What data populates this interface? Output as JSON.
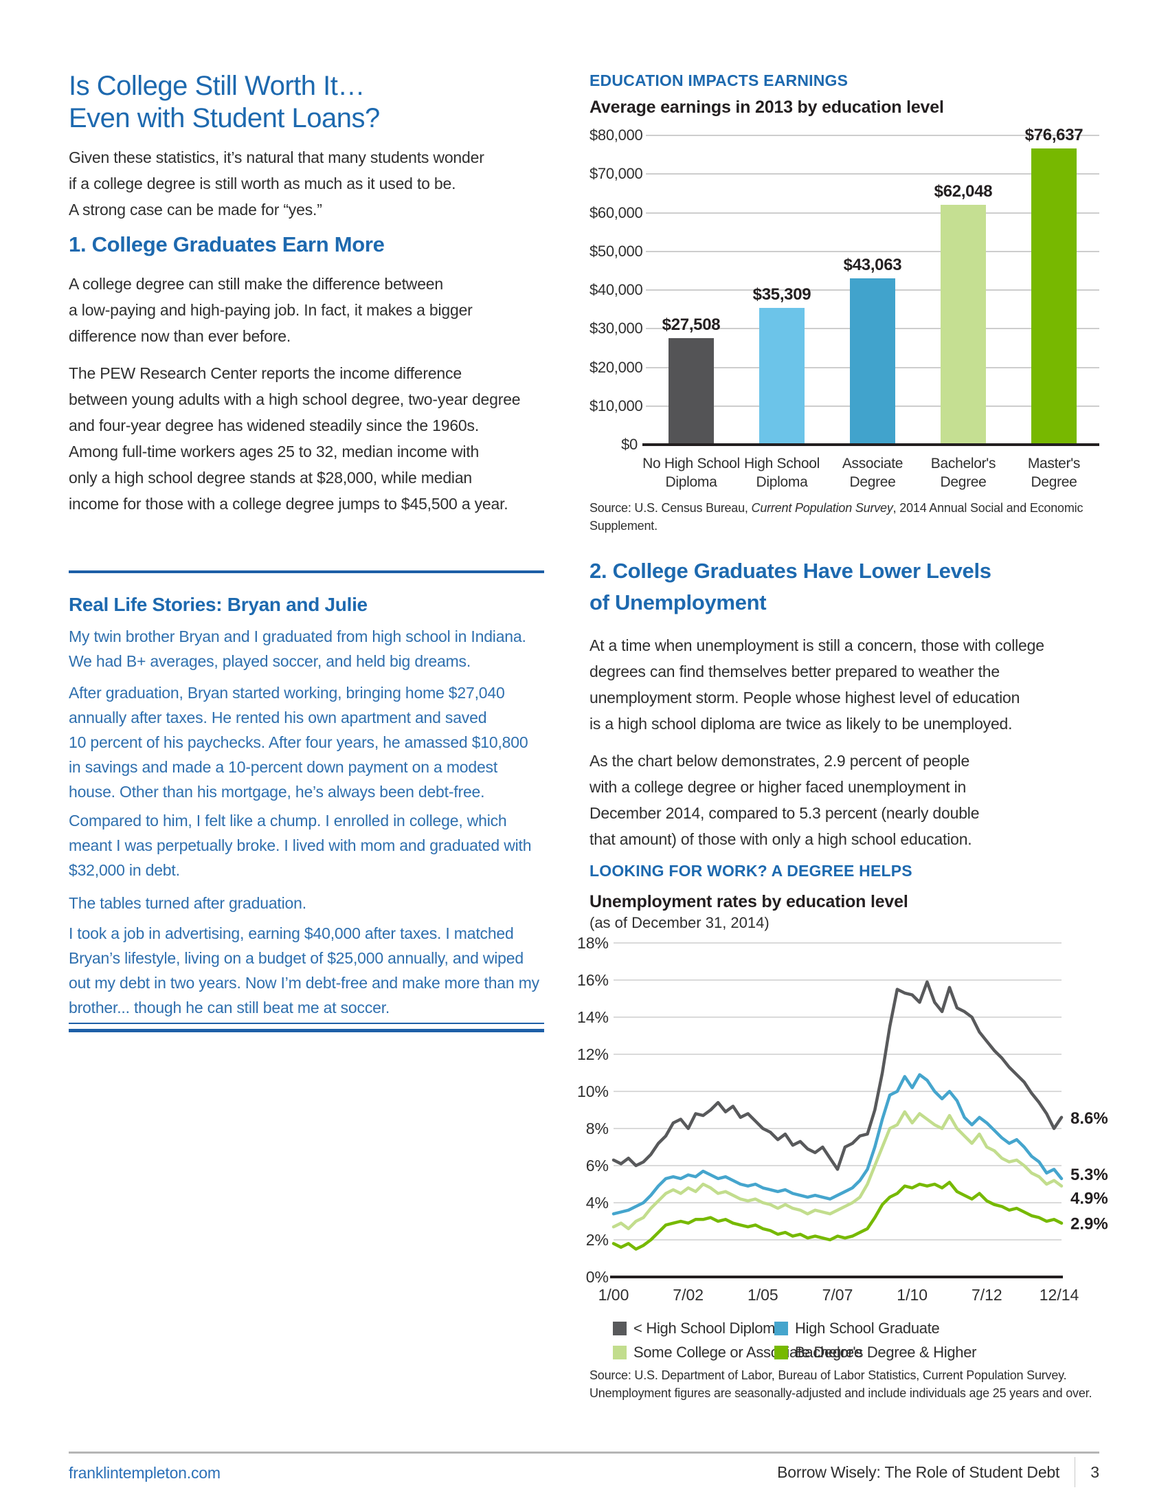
{
  "left": {
    "title_line1": "Is College Still Worth It…",
    "title_line2": "Even with Student Loans?",
    "intro": "Given these statistics, it’s natural that many students wonder\nif a college degree is still worth as much as it used to be.\nA strong case can be made for “yes.”",
    "section1": {
      "heading": "1. College Graduates Earn More",
      "p1": "A college degree can still make the difference between\na low-paying and high-paying job. In fact, it makes a bigger\ndifference now than ever before.",
      "p2": "The PEW Research Center reports the income difference\nbetween young adults with a high school degree, two-year degree\nand four-year degree has widened steadily since the 1960s.\nAmong full-time workers ages 25 to 32, median income with\nonly a high school degree stands at $28,000, while median\nincome for those with a college degree jumps to $45,500 a year."
    },
    "story": {
      "heading": "Real Life Stories: Bryan and Julie",
      "p1": "My twin brother Bryan and I graduated from high school in Indiana.\nWe had B+ averages, played soccer, and held big dreams.",
      "p2": "After graduation, Bryan started working, bringing home $27,040\nannually after taxes. He rented his own apartment and saved\n10 percent of his paychecks. After four years, he amassed $10,800\nin savings and made a 10-percent down payment on a modest\nhouse. Other than his mortgage, he’s always been debt-free.",
      "p3": "Compared to him, I felt like a chump. I enrolled in college, which\nmeant I was perpetually broke. I lived with mom and graduated with\n$32,000 in debt.",
      "p4": "The tables turned after graduation.",
      "p5": "I took a job in advertising, earning $40,000 after taxes. I matched\nBryan’s lifestyle, living on a budget of $25,000 annually, and wiped\nout my debt in two years. Now I’m debt-free and make more than my\nbrother... though he can still beat me at soccer."
    }
  },
  "right": {
    "kicker1": "EDUCATION IMPACTS EARNINGS",
    "source1": {
      "prefix": "Source: U.S. Census Bureau, ",
      "italic": "Current Population Survey",
      "suffix": ", 2014 Annual Social and Economic Supplement."
    },
    "section2": {
      "heading": "2. College Graduates Have Lower Levels\nof Unemployment",
      "p1": "At a time when unemployment is still a concern, those with college\ndegrees can find themselves better prepared to weather the\nunemployment storm. People whose highest level of education\nis a high school diploma are twice as likely to be unemployed.",
      "p2": "As the chart below demonstrates, 2.9 percent of people\nwith a college degree or higher faced unemployment in\nDecember 2014, compared to 5.3 percent (nearly double\nthat amount) of those with only a high school education."
    },
    "kicker2": "LOOKING FOR WORK? A DEGREE HELPS",
    "source2": "Source: U.S. Department of Labor, Bureau of Labor Statistics, Current Population Survey.\nUnemployment figures are seasonally-adjusted and include individuals age 25 years and over."
  },
  "footer": {
    "site": "franklintempleton.com",
    "doc_title": "Borrow Wisely: The Role of Student Debt",
    "page_number": "3"
  },
  "colors": {
    "heading_blue": "#1d69af",
    "story_blue": "#2e6fae",
    "rule_blue": "#1d5fa7",
    "grid_gray": "#cdcdcd",
    "axis_black": "#231f20"
  },
  "chart_data": [
    {
      "type": "bar",
      "title": "Average earnings in 2013 by education level",
      "categories": [
        "No High School Diploma",
        "High School Diploma",
        "Associate Degree",
        "Bachelor's Degree",
        "Master's Degree"
      ],
      "category_lines": [
        [
          "No High School",
          "Diploma"
        ],
        [
          "High School",
          "Diploma"
        ],
        [
          "Associate",
          "Degree"
        ],
        [
          "Bachelor's",
          "Degree"
        ],
        [
          "Master's",
          "Degree"
        ]
      ],
      "values": [
        27508,
        35309,
        43063,
        62048,
        76637
      ],
      "value_labels": [
        "$27,508",
        "$35,309",
        "$43,063",
        "$62,048",
        "$76,637"
      ],
      "bar_colors": [
        "#545456",
        "#6cc4e9",
        "#41a3cc",
        "#c5df92",
        "#77b800"
      ],
      "ylim": [
        0,
        80000
      ],
      "ytick_step": 10000,
      "ytick_labels": [
        "$80,000",
        "$70,000",
        "$60,000",
        "$50,000",
        "$40,000",
        "$30,000",
        "$20,000",
        "$10,000",
        "$0"
      ],
      "grid": true,
      "xlabel": "",
      "ylabel": ""
    },
    {
      "type": "line",
      "title": "Unemployment rates by education level",
      "subtitle": "(as of December 31, 2014)",
      "ylim": [
        0,
        18
      ],
      "ytick_step": 2,
      "ytick_labels": [
        "18%",
        "16%",
        "14%",
        "12%",
        "10%",
        "8%",
        "6%",
        "4%",
        "2%",
        "0%"
      ],
      "x_start": 2000.0,
      "x_step": 0.25,
      "x_end": 2015.0,
      "xtick_labels": [
        "1/00",
        "7/02",
        "1/05",
        "7/07",
        "1/10",
        "7/12",
        "12/14"
      ],
      "xtick_positions": [
        2000.0,
        2002.5,
        2005.0,
        2007.5,
        2010.0,
        2012.5,
        2014.92
      ],
      "grid": true,
      "legend_position": "bottom",
      "series": [
        {
          "name": "< High School Diploma",
          "color": "#58595b",
          "end_label": "8.6%",
          "label_dy": 9,
          "values": [
            6.3,
            6.1,
            6.4,
            6.0,
            6.2,
            6.6,
            7.2,
            7.6,
            8.3,
            8.5,
            8.0,
            8.8,
            8.7,
            9.0,
            9.4,
            8.9,
            9.2,
            8.6,
            8.8,
            8.4,
            8.0,
            7.8,
            7.4,
            7.7,
            7.1,
            7.3,
            6.9,
            6.7,
            7.0,
            6.4,
            5.8,
            7.0,
            7.2,
            7.6,
            7.7,
            9.0,
            11.0,
            13.5,
            15.5,
            15.3,
            15.2,
            14.8,
            15.9,
            14.8,
            14.3,
            15.6,
            14.5,
            14.3,
            14.0,
            13.2,
            12.7,
            12.2,
            11.8,
            11.3,
            10.9,
            10.5,
            9.9,
            9.4,
            8.8,
            8.0,
            8.6
          ]
        },
        {
          "name": "High School Graduate",
          "color": "#45a5cd",
          "end_label": "5.3%",
          "label_dy": 2,
          "values": [
            3.4,
            3.5,
            3.6,
            3.8,
            4.0,
            4.4,
            4.9,
            5.3,
            5.4,
            5.3,
            5.5,
            5.4,
            5.7,
            5.5,
            5.3,
            5.4,
            5.2,
            5.0,
            4.9,
            5.0,
            4.8,
            4.7,
            4.6,
            4.7,
            4.5,
            4.4,
            4.3,
            4.4,
            4.3,
            4.2,
            4.4,
            4.6,
            4.8,
            5.2,
            5.8,
            7.0,
            8.5,
            9.8,
            10.0,
            10.8,
            10.2,
            10.9,
            10.6,
            10.0,
            9.6,
            10.0,
            9.5,
            8.6,
            8.2,
            8.6,
            8.3,
            7.9,
            7.5,
            7.2,
            7.4,
            7.0,
            6.5,
            6.2,
            5.6,
            5.8,
            5.3
          ]
        },
        {
          "name": "Some College or Associate Degree",
          "color": "#c2dd8d",
          "end_label": "4.9%",
          "label_dy": 26,
          "values": [
            2.7,
            2.9,
            2.6,
            3.0,
            3.2,
            3.7,
            4.1,
            4.5,
            4.7,
            4.5,
            4.8,
            4.6,
            5.0,
            4.8,
            4.5,
            4.6,
            4.4,
            4.2,
            4.1,
            4.2,
            4.0,
            3.9,
            3.7,
            3.9,
            3.7,
            3.6,
            3.4,
            3.6,
            3.5,
            3.4,
            3.6,
            3.8,
            4.0,
            4.3,
            5.0,
            6.0,
            7.0,
            8.0,
            8.2,
            8.9,
            8.3,
            8.8,
            8.5,
            8.2,
            8.0,
            8.7,
            8.0,
            7.6,
            7.2,
            7.7,
            7.0,
            6.8,
            6.4,
            6.2,
            6.3,
            6.0,
            5.6,
            5.4,
            5.0,
            5.2,
            4.9
          ]
        },
        {
          "name": "Bachelor's Degree & Higher",
          "color": "#76b900",
          "end_label": "2.9%",
          "label_dy": 9,
          "values": [
            1.8,
            1.6,
            1.8,
            1.5,
            1.7,
            2.0,
            2.4,
            2.8,
            2.9,
            3.0,
            2.9,
            3.1,
            3.1,
            3.2,
            3.0,
            3.1,
            2.9,
            2.8,
            2.7,
            2.8,
            2.6,
            2.5,
            2.3,
            2.4,
            2.2,
            2.3,
            2.1,
            2.2,
            2.1,
            2.0,
            2.2,
            2.1,
            2.2,
            2.4,
            2.6,
            3.2,
            3.9,
            4.3,
            4.5,
            4.9,
            4.8,
            5.0,
            4.9,
            5.0,
            4.8,
            5.1,
            4.6,
            4.4,
            4.2,
            4.5,
            4.1,
            3.9,
            3.8,
            3.6,
            3.7,
            3.5,
            3.3,
            3.2,
            3.0,
            3.1,
            2.9
          ]
        }
      ]
    }
  ]
}
